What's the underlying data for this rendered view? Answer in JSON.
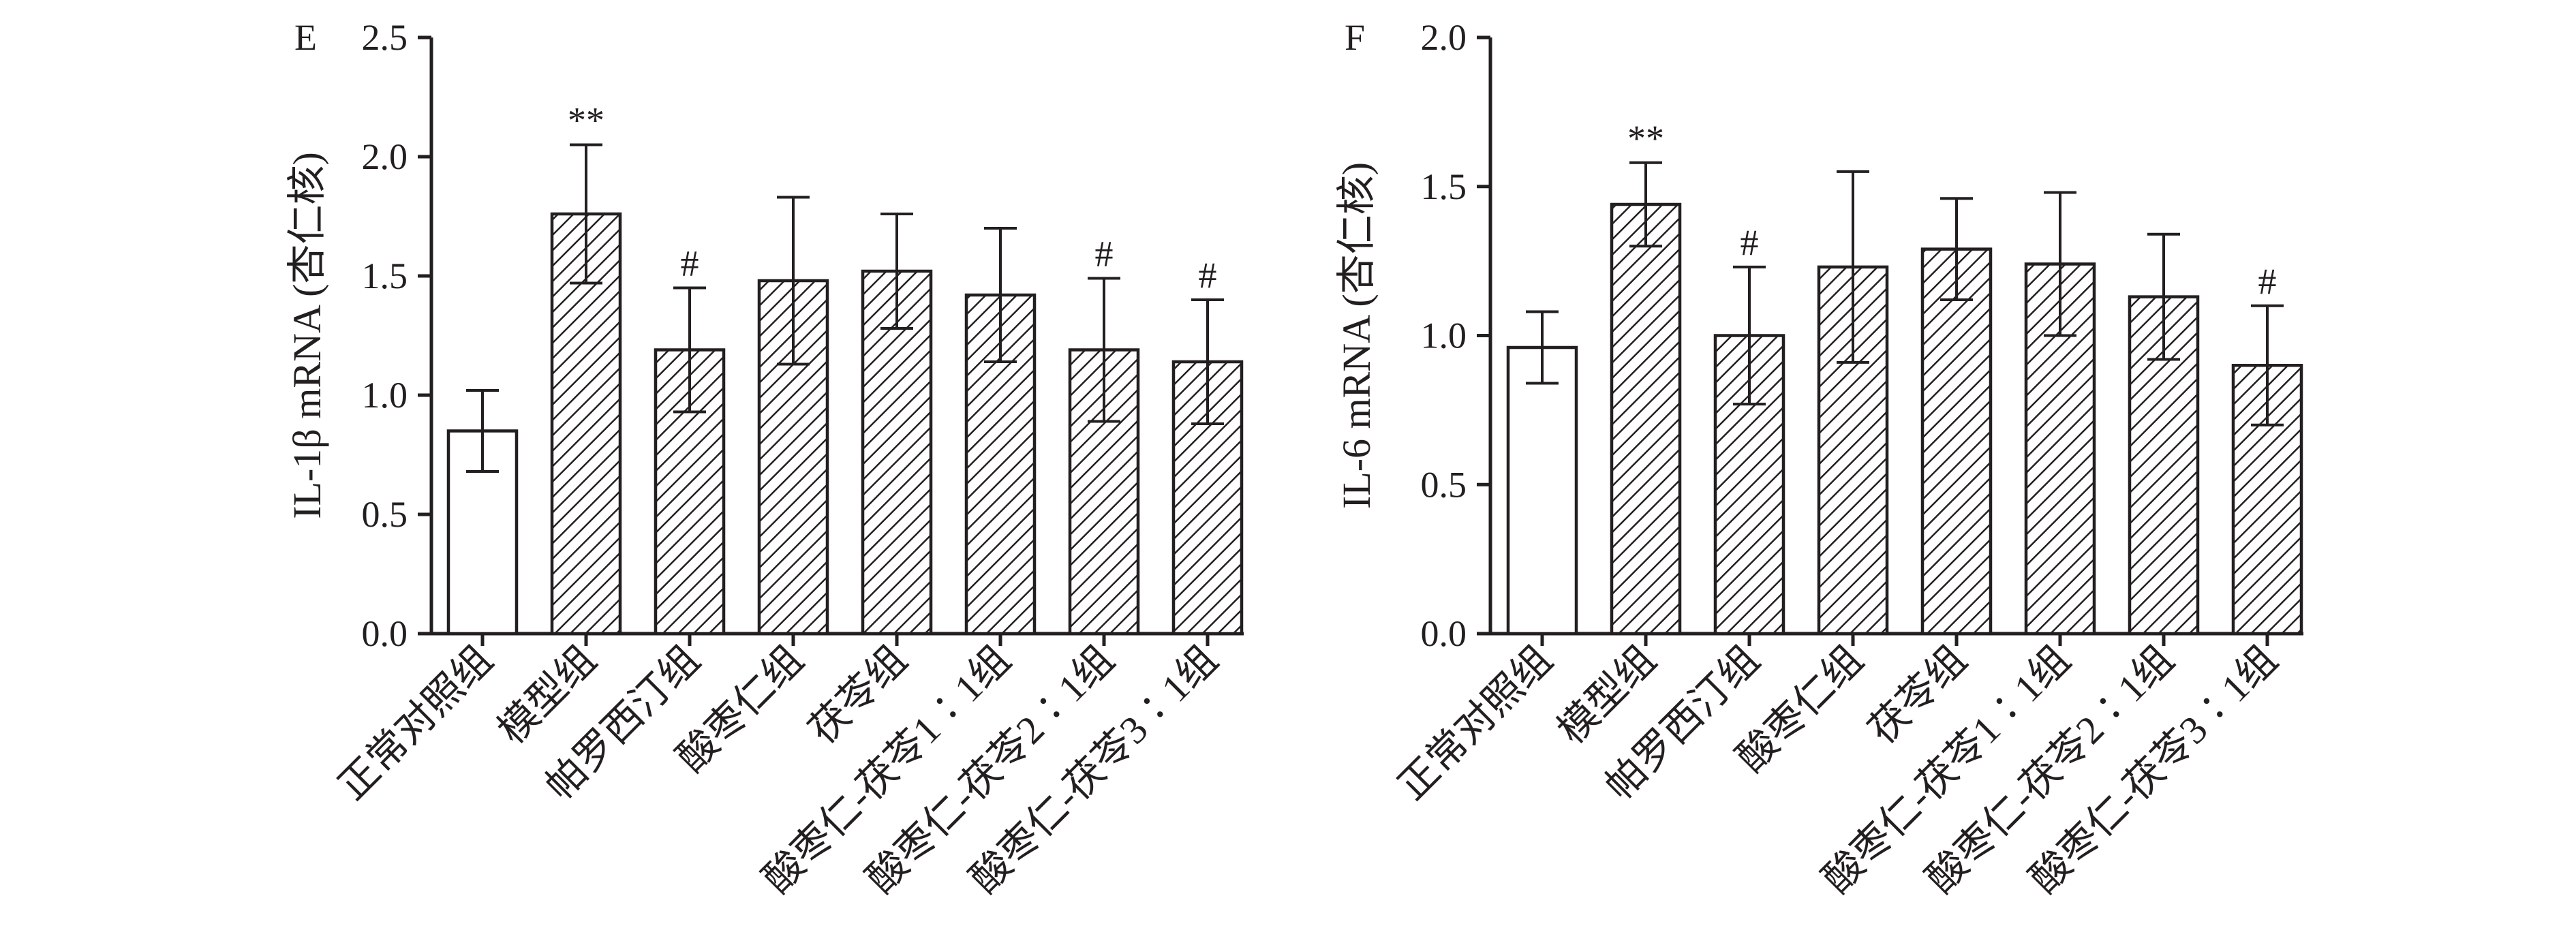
{
  "chart_data": [
    {
      "type": "bar",
      "panel_label": "E",
      "ylabel": "IL-1β mRNA (杏仁核)",
      "ylim": [
        0,
        2.5
      ],
      "yticks": [
        "0.0",
        "0.5",
        "1.0",
        "1.5",
        "2.0",
        "2.5"
      ],
      "categories": [
        "正常对照组",
        "模型组",
        "帕罗西汀组",
        "酸枣仁组",
        "茯苓组",
        "酸枣仁-茯苓1∶1组",
        "酸枣仁-茯苓2∶1组",
        "酸枣仁-茯苓3∶1组"
      ],
      "values": [
        0.85,
        1.76,
        1.19,
        1.48,
        1.52,
        1.42,
        1.19,
        1.14
      ],
      "errors": [
        0.17,
        0.29,
        0.26,
        0.35,
        0.24,
        0.28,
        0.3,
        0.26
      ],
      "annotations": [
        "",
        "**",
        "#",
        "",
        "",
        "",
        "#",
        "#"
      ],
      "bar_styles": [
        "open",
        "hatched",
        "hatched",
        "hatched",
        "hatched",
        "hatched",
        "hatched",
        "hatched"
      ],
      "grid": false
    },
    {
      "type": "bar",
      "panel_label": "F",
      "ylabel": "IL-6 mRNA (杏仁核)",
      "ylim": [
        0,
        2.0
      ],
      "yticks": [
        "0.0",
        "0.5",
        "1.0",
        "1.5",
        "2.0"
      ],
      "categories": [
        "正常对照组",
        "模型组",
        "帕罗西汀组",
        "酸枣仁组",
        "茯苓组",
        "酸枣仁-茯苓1∶1组",
        "酸枣仁-茯苓2∶1组",
        "酸枣仁-茯苓3∶1组"
      ],
      "values": [
        0.96,
        1.44,
        1.0,
        1.23,
        1.29,
        1.24,
        1.13,
        0.9
      ],
      "errors": [
        0.12,
        0.14,
        0.23,
        0.32,
        0.17,
        0.24,
        0.21,
        0.2
      ],
      "annotations": [
        "",
        "**",
        "#",
        "",
        "",
        "",
        "",
        "#"
      ],
      "bar_styles": [
        "open",
        "hatched",
        "hatched",
        "hatched",
        "hatched",
        "hatched",
        "hatched",
        "hatched"
      ],
      "grid": false
    }
  ],
  "colors": {
    "ink": "#231f20",
    "bar_fill_open": "#ffffff",
    "background": "#ffffff"
  }
}
